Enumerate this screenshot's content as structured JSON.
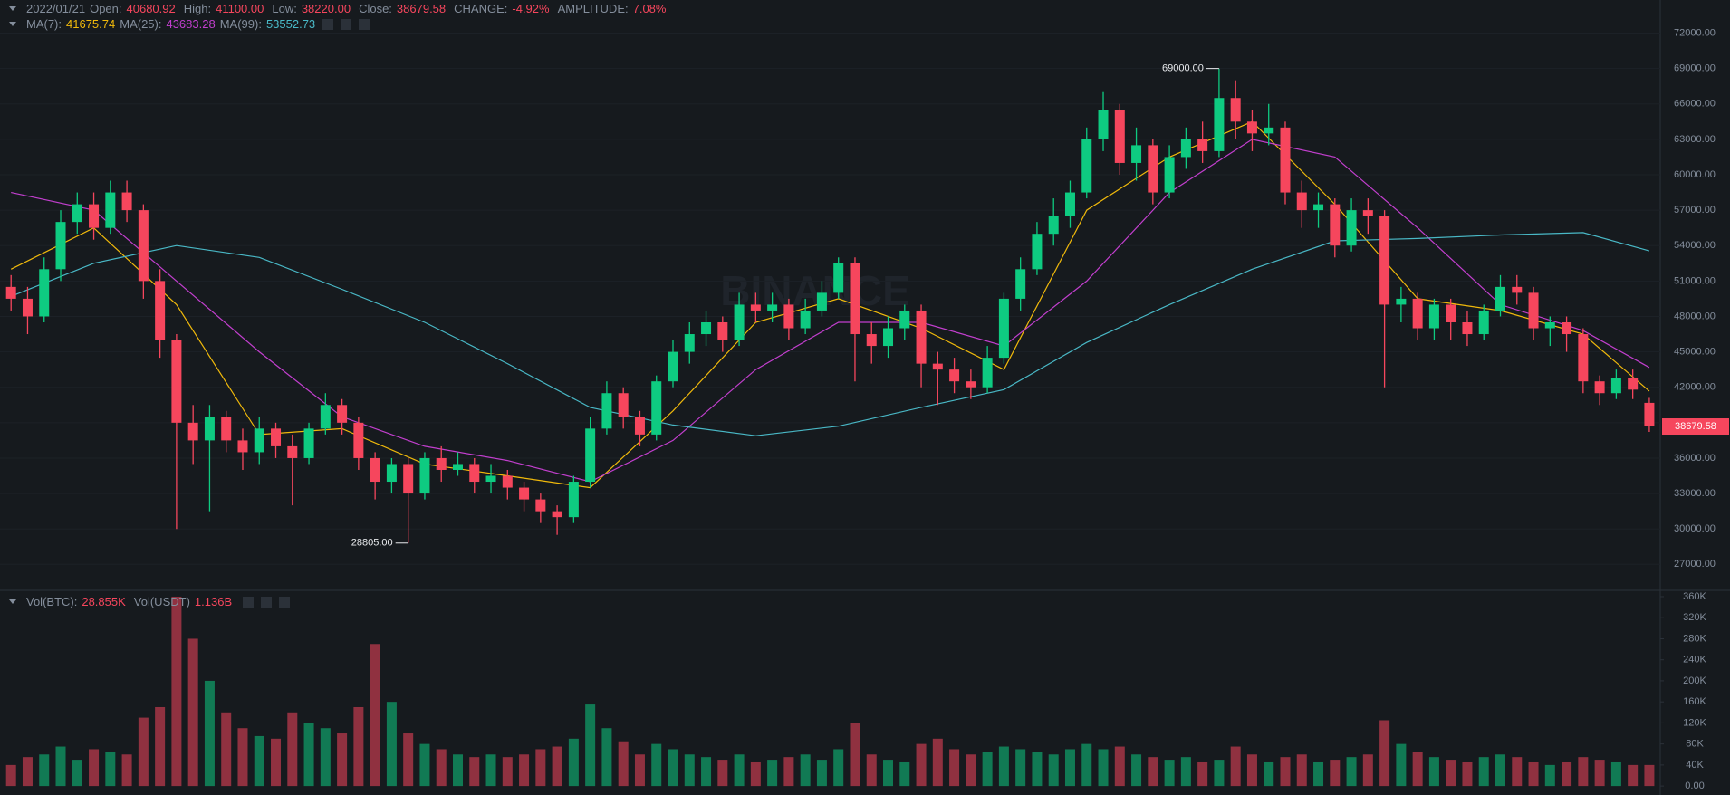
{
  "chart_data": {
    "type": "candlestick",
    "header": {
      "date": "2022/01/21",
      "fields": [
        {
          "label": "Open:",
          "value": "40680.92"
        },
        {
          "label": "High:",
          "value": "41100.00"
        },
        {
          "label": "Low:",
          "value": "38220.00"
        },
        {
          "label": "Close:",
          "value": "38679.58"
        },
        {
          "label": "CHANGE:",
          "value": "-4.92%"
        },
        {
          "label": "AMPLITUDE:",
          "value": "7.08%"
        }
      ]
    },
    "watermark": "BINANCE",
    "up_color": "#0ecb81",
    "down_color": "#f6465d",
    "candles": {
      "open": [
        50500,
        49500,
        48000,
        52000,
        56000,
        57500,
        55500,
        58500,
        57000,
        51000,
        46000,
        39000,
        37500,
        39500,
        37500,
        36500,
        38500,
        37000,
        36000,
        38500,
        40500,
        39000,
        36000,
        34000,
        35500,
        33000,
        36000,
        35000,
        35500,
        34000,
        34500,
        33500,
        32500,
        31500,
        31000,
        34000,
        38500,
        41500,
        39500,
        38000,
        42500,
        45000,
        46500,
        47500,
        46000,
        49000,
        48500,
        49000,
        47000,
        48500,
        50000,
        52500,
        46500,
        45500,
        47000,
        48500,
        44000,
        43500,
        42500,
        42000,
        44500,
        49500,
        52000,
        55000,
        56500,
        58500,
        63000,
        65500,
        61000,
        62500,
        58500,
        61500,
        63000,
        62000,
        66500,
        64500,
        63500,
        64000,
        58500,
        57000,
        57500,
        54000,
        57000,
        56500,
        49000,
        49500,
        47000,
        49000,
        47500,
        46500,
        48500,
        50500,
        50000,
        47000,
        47500,
        46500,
        42500,
        41500,
        42800,
        40680.92
      ],
      "high": [
        51500,
        50500,
        53000,
        57000,
        58500,
        58500,
        59500,
        59500,
        57500,
        52000,
        46500,
        40500,
        40500,
        40000,
        38500,
        39500,
        39000,
        38000,
        39000,
        41500,
        41000,
        39500,
        36500,
        36000,
        36000,
        36500,
        37000,
        36500,
        36000,
        35500,
        35000,
        34000,
        33000,
        32000,
        34500,
        39500,
        42500,
        42000,
        40000,
        43000,
        46000,
        47500,
        48500,
        48000,
        50000,
        50000,
        50000,
        49500,
        49500,
        51000,
        53000,
        53000,
        47500,
        48000,
        49000,
        49000,
        45000,
        44500,
        43500,
        45500,
        50000,
        53000,
        56000,
        58000,
        59500,
        64000,
        67000,
        66000,
        64000,
        63000,
        62500,
        64000,
        64500,
        69000,
        68000,
        65500,
        66000,
        64500,
        59500,
        58500,
        58000,
        58000,
        58000,
        57000,
        50500,
        50000,
        49500,
        49500,
        48500,
        49000,
        51500,
        51500,
        50500,
        48000,
        48000,
        47000,
        43000,
        43500,
        43500,
        41100
      ],
      "low": [
        48500,
        46500,
        47500,
        51000,
        55000,
        54500,
        55000,
        56000,
        49500,
        44500,
        30000,
        35500,
        31500,
        36500,
        35000,
        35500,
        36000,
        32000,
        35500,
        38000,
        38000,
        35000,
        32500,
        33000,
        28805,
        32500,
        34000,
        34500,
        33000,
        33000,
        32500,
        31500,
        30500,
        29500,
        30500,
        33500,
        38000,
        38500,
        37000,
        37500,
        42000,
        44000,
        45500,
        45000,
        45500,
        47500,
        47500,
        46000,
        46500,
        48000,
        49500,
        42500,
        44000,
        44500,
        46000,
        42000,
        40500,
        41500,
        41000,
        41500,
        44000,
        48500,
        51500,
        54000,
        55500,
        58000,
        62000,
        60000,
        59500,
        57500,
        58000,
        60500,
        61000,
        61500,
        63000,
        62000,
        62500,
        57500,
        55500,
        55500,
        53000,
        53500,
        55000,
        42000,
        47500,
        46000,
        46000,
        46000,
        45500,
        46000,
        48000,
        49000,
        46000,
        45500,
        45000,
        41500,
        40500,
        41000,
        41000,
        38220
      ],
      "close": [
        49500,
        48000,
        52000,
        56000,
        57500,
        55500,
        58500,
        57000,
        51000,
        46000,
        39000,
        37500,
        39500,
        37500,
        36500,
        38500,
        37000,
        36000,
        38500,
        40500,
        39000,
        36000,
        34000,
        35500,
        33000,
        36000,
        35000,
        35500,
        34000,
        34500,
        33500,
        32500,
        31500,
        31000,
        34000,
        38500,
        41500,
        39500,
        38000,
        42500,
        45000,
        46500,
        47500,
        46000,
        49000,
        48500,
        49000,
        47000,
        48500,
        50000,
        52500,
        46500,
        45500,
        47000,
        48500,
        44000,
        43500,
        42500,
        42000,
        44500,
        49500,
        52000,
        55000,
        56500,
        58500,
        63000,
        65500,
        61000,
        62500,
        58500,
        61500,
        63000,
        62000,
        66500,
        64500,
        63500,
        64000,
        58500,
        57000,
        57500,
        54000,
        57000,
        56500,
        49000,
        49500,
        47000,
        49000,
        47500,
        46500,
        48500,
        50500,
        50000,
        47000,
        47500,
        46500,
        42500,
        41500,
        42800,
        41800,
        38679.58
      ]
    },
    "max_label": "69000.00",
    "min_label": "28805.00",
    "last_label": "38679.58",
    "series": [
      {
        "name": "MA(7):",
        "legend_value": "41675.74",
        "color": "#f0b90b",
        "x": [
          0,
          5,
          10,
          15,
          20,
          25,
          30,
          35,
          40,
          45,
          50,
          55,
          60,
          65,
          70,
          75,
          80,
          85,
          90,
          95,
          99
        ],
        "values": [
          52000,
          55500,
          49000,
          38000,
          38500,
          35500,
          34500,
          33500,
          40000,
          47500,
          49500,
          47000,
          43500,
          57000,
          61500,
          64500,
          57500,
          49500,
          48500,
          46500,
          41675.74
        ]
      },
      {
        "name": "MA(25):",
        "legend_value": "43683.28",
        "color": "#c23fce",
        "x": [
          0,
          5,
          10,
          15,
          20,
          25,
          30,
          35,
          40,
          45,
          50,
          55,
          60,
          65,
          70,
          75,
          80,
          85,
          90,
          95,
          99
        ],
        "values": [
          58500,
          57000,
          51000,
          45000,
          39500,
          37000,
          35800,
          34000,
          37500,
          43500,
          47500,
          47500,
          45500,
          51000,
          58500,
          63000,
          61500,
          55500,
          49000,
          46800,
          43683.28
        ]
      },
      {
        "name": "MA(99):",
        "legend_value": "53552.73",
        "color": "#49b8c6",
        "x": [
          0,
          5,
          10,
          15,
          20,
          25,
          30,
          35,
          40,
          45,
          50,
          55,
          60,
          65,
          70,
          75,
          80,
          85,
          90,
          95,
          99
        ],
        "values": [
          49700,
          52500,
          54000,
          53000,
          50300,
          47500,
          44000,
          40300,
          38800,
          37900,
          38700,
          40300,
          41800,
          45800,
          49000,
          52000,
          54400,
          54600,
          54900,
          55100,
          53552.73
        ]
      }
    ],
    "ylim": [
      24800,
      74800
    ],
    "yticks": [
      {
        "value": 27000,
        "label": "27000.00"
      },
      {
        "value": 30000,
        "label": "30000.00"
      },
      {
        "value": 33000,
        "label": "33000.00"
      },
      {
        "value": 36000,
        "label": "36000.00"
      },
      {
        "value": 39000,
        "label": "39000.00"
      },
      {
        "value": 42000,
        "label": "42000.00"
      },
      {
        "value": 45000,
        "label": "45000.00"
      },
      {
        "value": 48000,
        "label": "48000.00"
      },
      {
        "value": 51000,
        "label": "51000.00"
      },
      {
        "value": 54000,
        "label": "54000.00"
      },
      {
        "value": 57000,
        "label": "57000.00"
      },
      {
        "value": 60000,
        "label": "60000.00"
      },
      {
        "value": 63000,
        "label": "63000.00"
      },
      {
        "value": 66000,
        "label": "66000.00"
      },
      {
        "value": 69000,
        "label": "69000.00"
      },
      {
        "value": 72000,
        "label": "72000.00"
      }
    ],
    "volume": {
      "fields": [
        {
          "label": "Vol(BTC):",
          "value": "28.855K"
        },
        {
          "label": "Vol(USDT)",
          "value": "1.136B"
        }
      ],
      "values": [
        40000,
        55000,
        60000,
        75000,
        50000,
        70000,
        65000,
        60000,
        130000,
        150000,
        360000,
        280000,
        200000,
        140000,
        110000,
        95000,
        90000,
        140000,
        120000,
        110000,
        100000,
        150000,
        270000,
        160000,
        100000,
        80000,
        70000,
        60000,
        55000,
        60000,
        55000,
        60000,
        70000,
        75000,
        90000,
        155000,
        110000,
        85000,
        60000,
        80000,
        70000,
        60000,
        55000,
        50000,
        60000,
        45000,
        50000,
        55000,
        60000,
        50000,
        70000,
        120000,
        60000,
        50000,
        45000,
        80000,
        90000,
        70000,
        60000,
        65000,
        75000,
        70000,
        65000,
        60000,
        70000,
        80000,
        70000,
        75000,
        60000,
        55000,
        50000,
        55000,
        45000,
        50000,
        75000,
        60000,
        45000,
        55000,
        60000,
        45000,
        50000,
        55000,
        60000,
        125000,
        80000,
        65000,
        55000,
        50000,
        45000,
        55000,
        60000,
        55000,
        45000,
        40000,
        45000,
        55000,
        50000,
        45000,
        40000,
        40000
      ],
      "ylim": [
        -17000,
        372000
      ],
      "yticks": [
        {
          "value": 0,
          "label": "0.00"
        },
        {
          "value": 40000,
          "label": "40K"
        },
        {
          "value": 80000,
          "label": "80K"
        },
        {
          "value": 120000,
          "label": "120K"
        },
        {
          "value": 160000,
          "label": "160K"
        },
        {
          "value": 200000,
          "label": "200K"
        },
        {
          "value": 240000,
          "label": "240K"
        },
        {
          "value": 280000,
          "label": "280K"
        },
        {
          "value": 320000,
          "label": "320K"
        },
        {
          "value": 360000,
          "label": "360K"
        }
      ]
    }
  }
}
